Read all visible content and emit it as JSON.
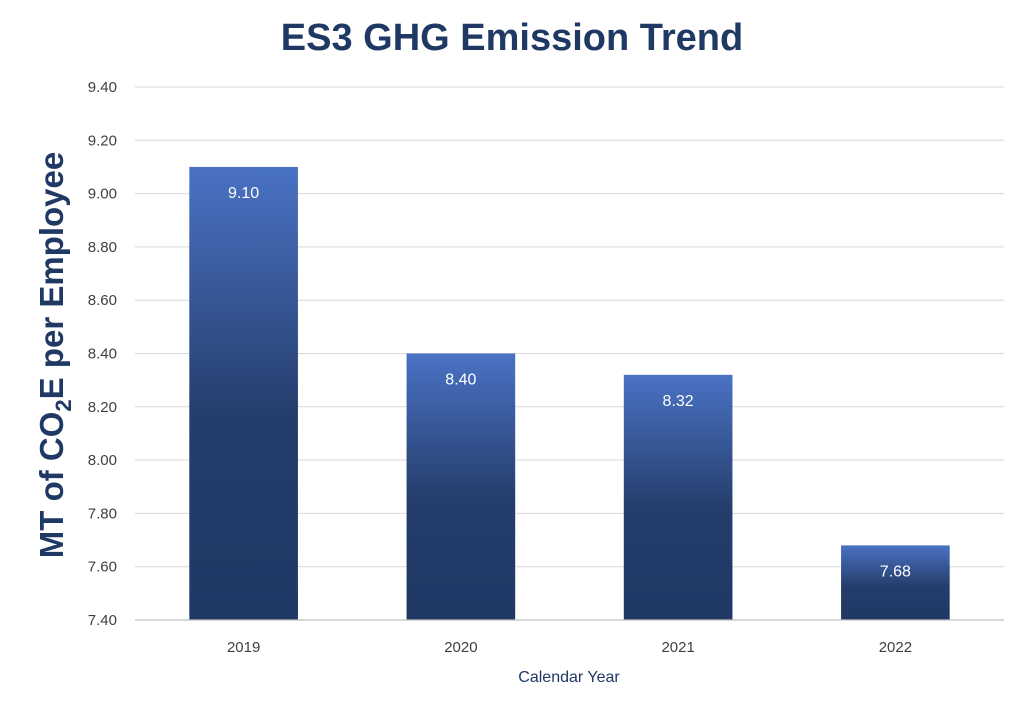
{
  "chart_data": {
    "type": "bar",
    "title": "ES3 GHG Emission Trend",
    "xlabel": "Calendar Year",
    "ylabel": "MT of CO2E per Employee",
    "ylabel_parts": {
      "pre": "MT of CO",
      "sub": "2",
      "post": "E per Employee"
    },
    "categories": [
      "2019",
      "2020",
      "2021",
      "2022"
    ],
    "values": [
      9.1,
      8.4,
      8.32,
      7.68
    ],
    "data_labels": [
      "9.10",
      "8.40",
      "8.32",
      "7.68"
    ],
    "ylim": [
      7.4,
      9.4
    ],
    "yticks": [
      "7.40",
      "7.60",
      "7.80",
      "8.00",
      "8.20",
      "8.40",
      "8.60",
      "8.80",
      "9.00",
      "9.20",
      "9.40"
    ],
    "grid": true,
    "legend": "none",
    "colors": {
      "bar_top": "#4a72c4",
      "bar_bottom": "#1f3864",
      "title": "#1f3864"
    }
  }
}
